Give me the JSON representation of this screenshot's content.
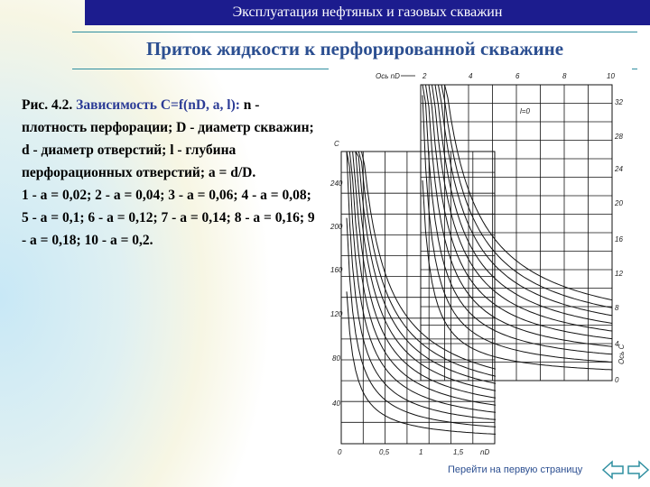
{
  "header": {
    "title": "Эксплуатация нефтяных и газовых скважин"
  },
  "slide": {
    "title": "Приток жидкости к перфорированной скважине"
  },
  "caption": {
    "fig_label": "Рис. 4.2.",
    "fig_title": "Зависимость C=f(nD, a, l):",
    "lines": [
      "n - плотность перфорации; D - диаметр скважин; d - диаметр отверстий; l - глубина перфорационных отверстий; a = d/D.",
      "1 - a = 0,02; 2 - a = 0,04; 3 - a = 0,06; 4 - a = 0,08; 5 - a = 0,1; 6 - a = 0,12; 7 - a = 0,14; 8 - a = 0,16; 9 - a = 0,18; 10 - a = 0,2."
    ]
  },
  "figure": {
    "top_axis_label": "Ось nD",
    "top_ticks": [
      "2",
      "4",
      "6",
      "8",
      "10"
    ],
    "right_ticks": [
      "32",
      "28",
      "24",
      "20",
      "16",
      "12",
      "8",
      "4",
      "0"
    ],
    "left_axis_label": "C",
    "left_ticks": [
      "240",
      "200",
      "160",
      "120",
      "80",
      "40",
      "0"
    ],
    "bottom_ticks": [
      "0,5",
      "1",
      "1,5",
      "nD"
    ],
    "inner_label": "l=0",
    "right_axis_label": "Ось C"
  },
  "footer": {
    "link_text": "Перейти на первую страницу"
  },
  "colors": {
    "header_bg": "#1c1c8e",
    "title": "#2c4f91",
    "accent_rule": "#2f8fa0"
  },
  "icons": {
    "prev": "arrow-left-icon",
    "next": "arrow-right-icon"
  }
}
